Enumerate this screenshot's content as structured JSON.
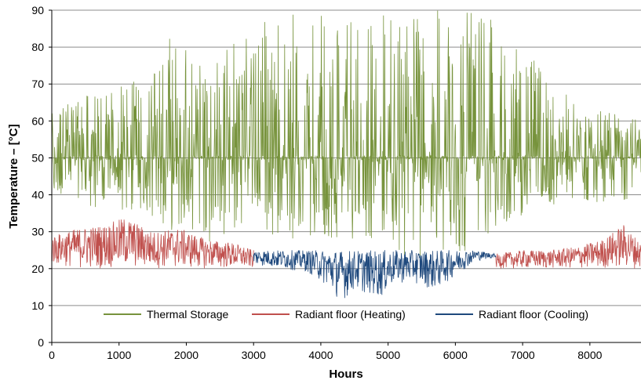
{
  "chart_data": {
    "type": "line",
    "title": "",
    "xlabel": "Hours",
    "ylabel": "Temperature – [°C]",
    "xlim": [
      0,
      8760
    ],
    "ylim": [
      0,
      90
    ],
    "x_ticks": [
      0,
      1000,
      2000,
      3000,
      4000,
      5000,
      6000,
      7000,
      8000
    ],
    "y_ticks": [
      0,
      10,
      20,
      30,
      40,
      50,
      60,
      70,
      80,
      90
    ],
    "grid": "horizontal",
    "legend_position": "bottom-center inside plot",
    "series": [
      {
        "name": "Thermal Storage",
        "color": "#77933c",
        "envelope_hour": [
          0,
          300,
          700,
          1100,
          1500,
          1800,
          2000,
          2300,
          2700,
          3000,
          3300,
          3700,
          4100,
          4500,
          4900,
          5300,
          5700,
          6100,
          6500,
          6800,
          7200,
          7600,
          8000,
          8400,
          8760
        ],
        "envelope_min": [
          40,
          38,
          36,
          35,
          34,
          30,
          32,
          27,
          30,
          31,
          28,
          28,
          28,
          28,
          28,
          22,
          22,
          24,
          26,
          33,
          36,
          37,
          38,
          38,
          40
        ],
        "envelope_max": [
          62,
          66,
          68,
          70,
          75,
          84,
          80,
          75,
          84,
          86,
          90,
          90,
          90,
          90,
          90,
          90,
          90,
          90,
          88,
          82,
          76,
          68,
          64,
          62,
          60
        ],
        "plateau_value": 50
      },
      {
        "name": "Radiant floor (Heating)",
        "color": "#c0504d",
        "segments_hours": [
          [
            0,
            3000
          ],
          [
            6600,
            8760
          ]
        ],
        "envelope_hour": [
          0,
          400,
          800,
          1100,
          1500,
          1900,
          2300,
          2700,
          3000,
          6600,
          7000,
          7400,
          7800,
          8200,
          8500,
          8760
        ],
        "envelope_min": [
          21,
          20,
          20,
          20,
          20,
          20,
          20,
          20,
          20,
          20,
          20,
          20,
          20,
          20,
          20,
          20
        ],
        "envelope_max": [
          29,
          31,
          32,
          34,
          30,
          31,
          28,
          27,
          25,
          24,
          25,
          25,
          26,
          28,
          32,
          27
        ]
      },
      {
        "name": "Radiant floor (Cooling)",
        "color": "#1f497d",
        "segments_hours": [
          [
            3000,
            6600
          ]
        ],
        "envelope_hour": [
          3000,
          3400,
          3800,
          4100,
          4300,
          4500,
          4700,
          4900,
          5100,
          5400,
          5700,
          6000,
          6300,
          6600
        ],
        "envelope_min": [
          21,
          20,
          19,
          15,
          11,
          14,
          13,
          12,
          16,
          16,
          14,
          18,
          22,
          23
        ],
        "envelope_max": [
          25,
          25,
          25,
          25,
          25,
          25,
          25,
          25,
          25,
          25,
          25,
          25,
          25,
          24
        ]
      }
    ]
  }
}
